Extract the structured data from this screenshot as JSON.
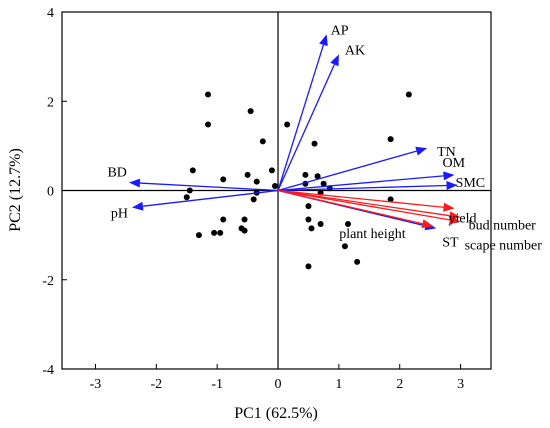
{
  "chart_data": {
    "type": "scatter",
    "title": "",
    "xlabel": "PC1 (62.5%)",
    "ylabel": "PC2 (12.7%)",
    "xlim": [
      -3.55,
      3.5
    ],
    "ylim": [
      -4,
      4
    ],
    "xticks": [
      -3,
      -2,
      -1,
      0,
      1,
      2,
      3
    ],
    "yticks": [
      -4,
      -2,
      0,
      2,
      4
    ],
    "xtick_labels": [
      "-3",
      "-2",
      "-1",
      "0",
      "1",
      "2",
      "3"
    ],
    "ytick_labels": [
      "-4",
      "-2",
      "0",
      "2",
      "4"
    ],
    "grid": false,
    "origin_lines": true,
    "colors": {
      "blue_vectors": "#1a1aff",
      "red_vectors": "#ff1a1a",
      "points": "#000000"
    },
    "points": [
      [
        -1.15,
        2.15
      ],
      [
        -1.15,
        1.48
      ],
      [
        -0.45,
        1.78
      ],
      [
        -0.25,
        1.1
      ],
      [
        0.15,
        1.48
      ],
      [
        -1.4,
        0.45
      ],
      [
        -0.9,
        0.25
      ],
      [
        -0.5,
        0.35
      ],
      [
        -0.35,
        0.2
      ],
      [
        -0.1,
        0.45
      ],
      [
        -1.45,
        0.0
      ],
      [
        -1.5,
        -0.15
      ],
      [
        -0.35,
        -0.05
      ],
      [
        -0.4,
        -0.2
      ],
      [
        -0.05,
        0.1
      ],
      [
        -0.9,
        -0.65
      ],
      [
        -0.55,
        -0.65
      ],
      [
        -0.95,
        -0.95
      ],
      [
        -1.05,
        -0.95
      ],
      [
        -1.3,
        -1.0
      ],
      [
        -0.6,
        -0.85
      ],
      [
        -0.55,
        -0.9
      ],
      [
        0.6,
        1.05
      ],
      [
        0.45,
        0.35
      ],
      [
        0.65,
        0.32
      ],
      [
        0.75,
        0.15
      ],
      [
        0.45,
        0.15
      ],
      [
        0.7,
        -0.05
      ],
      [
        0.85,
        0.05
      ],
      [
        0.5,
        -0.35
      ],
      [
        0.5,
        -0.65
      ],
      [
        0.55,
        -0.85
      ],
      [
        0.7,
        -0.75
      ],
      [
        1.15,
        -0.75
      ],
      [
        1.1,
        -1.25
      ],
      [
        1.3,
        -1.6
      ],
      [
        0.5,
        -1.7
      ],
      [
        1.85,
        1.15
      ],
      [
        2.15,
        2.15
      ],
      [
        1.85,
        -0.2
      ]
    ],
    "vectors": [
      {
        "label": "AP",
        "x": 0.8,
        "y": 3.5,
        "color": "blue"
      },
      {
        "label": "AK",
        "x": 1.0,
        "y": 3.05,
        "color": "blue"
      },
      {
        "label": "TN",
        "x": 2.45,
        "y": 0.95,
        "color": "blue"
      },
      {
        "label": "OM",
        "x": 2.9,
        "y": 0.35,
        "color": "blue"
      },
      {
        "label": "SMC",
        "x": 2.95,
        "y": 0.12,
        "color": "blue"
      },
      {
        "label": "BD",
        "x": -2.45,
        "y": 0.18,
        "color": "blue"
      },
      {
        "label": "pH",
        "x": -2.4,
        "y": -0.38,
        "color": "blue"
      },
      {
        "label": "yield",
        "x": 2.9,
        "y": -0.4,
        "color": "red"
      },
      {
        "label": "bud number",
        "x": 3.0,
        "y": -0.6,
        "color": "red"
      },
      {
        "label": "scape number",
        "x": 3.0,
        "y": -0.7,
        "color": "red"
      },
      {
        "label": "ST",
        "x": 2.6,
        "y": -0.85,
        "color": "blue"
      },
      {
        "label": "plant height",
        "x": 2.55,
        "y": -0.8,
        "color": "red"
      }
    ]
  }
}
